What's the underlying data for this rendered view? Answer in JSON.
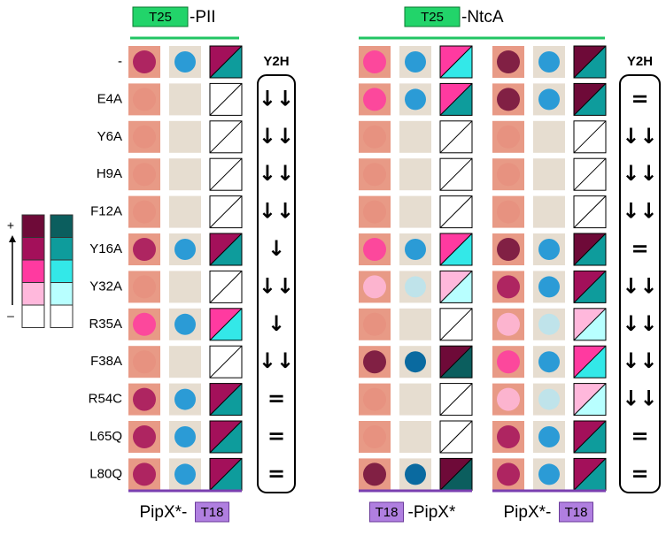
{
  "rows": [
    "-",
    "E4A",
    "Y6A",
    "H9A",
    "F12A",
    "Y16A",
    "Y32A",
    "R35A",
    "F38A",
    "R54C",
    "L65Q",
    "L80Q"
  ],
  "legend": {
    "plus": "+",
    "minus": "–",
    "red": [
      "#6e0a38",
      "#a3105a",
      "#ff3aa0",
      "#ffb8dc",
      "#ffffff"
    ],
    "blue": [
      "#0b5e5e",
      "#0e9c9c",
      "#33e8e8",
      "#b8ffff",
      "#ffffff"
    ]
  },
  "panels": [
    {
      "header": {
        "tag": "T25",
        "text": "-PII"
      },
      "strains": [
        {
          "footer": {
            "parts": [
              "PipX*-",
              "T18"
            ],
            "boxed": 1
          },
          "indicators": [
            [
              "#a3105a",
              "#0e9c9c"
            ],
            [
              "#ffffff",
              "#ffffff"
            ],
            [
              "#ffffff",
              "#ffffff"
            ],
            [
              "#ffffff",
              "#ffffff"
            ],
            [
              "#ffffff",
              "#ffffff"
            ],
            [
              "#a3105a",
              "#0e9c9c"
            ],
            [
              "#ffffff",
              "#ffffff"
            ],
            [
              "#ff3aa0",
              "#33e8e8"
            ],
            [
              "#ffffff",
              "#ffffff"
            ],
            [
              "#a3105a",
              "#0e9c9c"
            ],
            [
              "#a3105a",
              "#0e9c9c"
            ],
            [
              "#a3105a",
              "#0e9c9c"
            ]
          ]
        }
      ],
      "y2h": {
        "title": "Y2H",
        "results": [
          "↓↓",
          "↓↓",
          "↓↓",
          "↓↓",
          "↓",
          "↓↓",
          "↓",
          "↓↓",
          "=",
          "=",
          "="
        ]
      }
    },
    {
      "header": {
        "tag": "T25",
        "text": "-NtcA"
      },
      "strains": [
        {
          "footer": {
            "parts": [
              "T18",
              "-PipX*"
            ],
            "boxed": 0
          },
          "indicators": [
            [
              "#ff3aa0",
              "#33e8e8"
            ],
            [
              "#ff3aa0",
              "#0e9c9c"
            ],
            [
              "#ffffff",
              "#ffffff"
            ],
            [
              "#ffffff",
              "#ffffff"
            ],
            [
              "#ffffff",
              "#ffffff"
            ],
            [
              "#ff3aa0",
              "#33e8e8"
            ],
            [
              "#ffb8dc",
              "#b8ffff"
            ],
            [
              "#ffffff",
              "#ffffff"
            ],
            [
              "#6e0a38",
              "#0b5e5e"
            ],
            [
              "#ffffff",
              "#ffffff"
            ],
            [
              "#ffffff",
              "#ffffff"
            ],
            [
              "#6e0a38",
              "#0b5e5e"
            ]
          ]
        },
        {
          "footer": {
            "parts": [
              "PipX*-",
              "T18"
            ],
            "boxed": 1
          },
          "indicators": [
            [
              "#6e0a38",
              "#0e9c9c"
            ],
            [
              "#6e0a38",
              "#0e9c9c"
            ],
            [
              "#ffffff",
              "#ffffff"
            ],
            [
              "#ffffff",
              "#ffffff"
            ],
            [
              "#ffffff",
              "#ffffff"
            ],
            [
              "#6e0a38",
              "#0e9c9c"
            ],
            [
              "#a3105a",
              "#0e9c9c"
            ],
            [
              "#ffb8dc",
              "#b8ffff"
            ],
            [
              "#ff3aa0",
              "#33e8e8"
            ],
            [
              "#ffb8dc",
              "#b8ffff"
            ],
            [
              "#a3105a",
              "#0e9c9c"
            ],
            [
              "#a3105a",
              "#0e9c9c"
            ]
          ]
        }
      ],
      "y2h": {
        "title": "Y2H",
        "results": [
          "=",
          "↓↓",
          "↓↓",
          "↓↓",
          "=",
          "↓↓",
          "↓↓",
          "↓↓",
          "↓↓",
          "=",
          "="
        ]
      }
    }
  ]
}
